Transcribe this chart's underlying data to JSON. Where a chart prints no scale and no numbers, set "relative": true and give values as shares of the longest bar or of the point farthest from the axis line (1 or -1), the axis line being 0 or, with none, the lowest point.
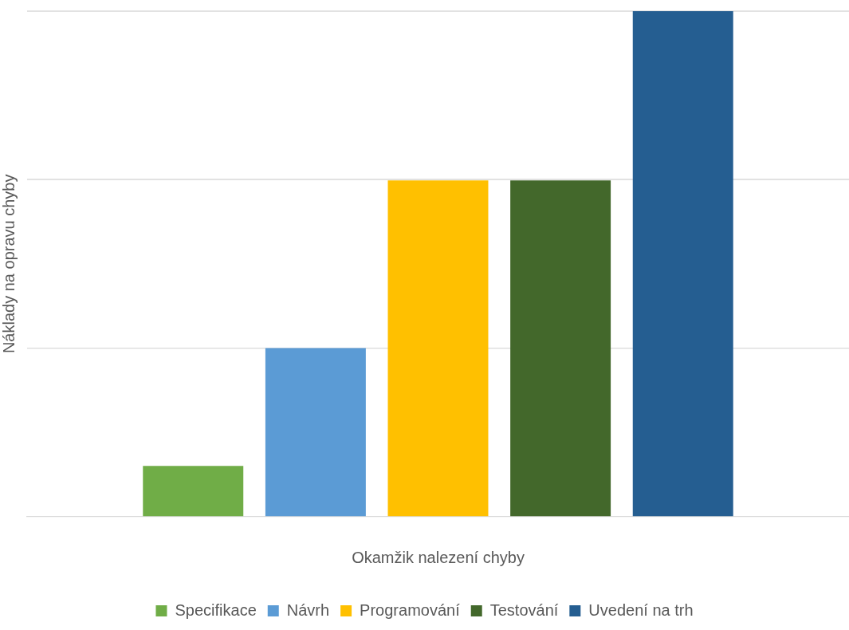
{
  "chart_data": {
    "type": "bar",
    "relative": true,
    "xlabel": "Okamžik nalezení chyby",
    "ylabel": "Náklady na opravu chyby",
    "categories": [
      null
    ],
    "series": [
      {
        "name": "Specifikace",
        "color": "#70ad47",
        "values": [
          0.1
        ]
      },
      {
        "name": "Návrh",
        "color": "#5b9bd5",
        "values": [
          0.333
        ]
      },
      {
        "name": "Programování",
        "color": "#ffc000",
        "values": [
          0.665
        ]
      },
      {
        "name": "Testování",
        "color": "#43682b",
        "values": [
          0.665
        ]
      },
      {
        "name": "Uvedení na trh",
        "color": "#255e91",
        "values": [
          1
        ]
      }
    ],
    "ref_lines": [
      {
        "axis": "y",
        "value": 0.333,
        "color": "#d9d9d9"
      },
      {
        "axis": "y",
        "value": 0.667,
        "color": "#d9d9d9"
      },
      {
        "axis": "y",
        "value": 1,
        "color": "#d9d9d9"
      }
    ],
    "legend": "bottom"
  }
}
